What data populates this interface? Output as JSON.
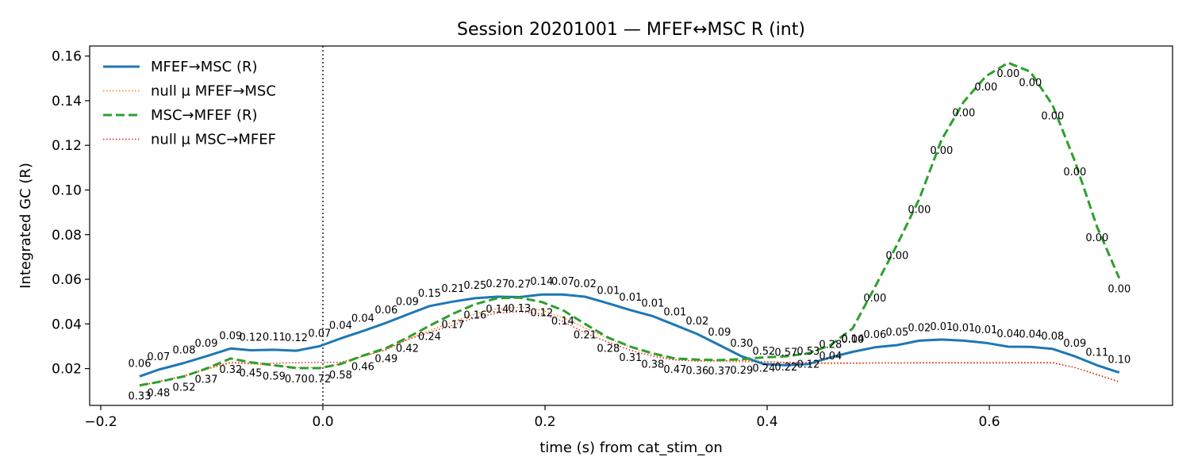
{
  "chart_data": {
    "type": "line",
    "title": "Session 20201001 — MFEF↔MSC R (int)",
    "xlabel": "time (s) from cat_stim_on",
    "ylabel": "Integrated GC (R)",
    "xlim": [
      -0.21,
      0.765
    ],
    "ylim": [
      0.0035,
      0.1645
    ],
    "xticks": [
      -0.2,
      0.0,
      0.2,
      0.4,
      0.6
    ],
    "xtick_labels": [
      "−0.2",
      "0.0",
      "0.2",
      "0.4",
      "0.6"
    ],
    "yticks": [
      0.02,
      0.04,
      0.06,
      0.08,
      0.1,
      0.12,
      0.14,
      0.16
    ],
    "ytick_labels": [
      "0.02",
      "0.04",
      "0.06",
      "0.08",
      "0.10",
      "0.12",
      "0.14",
      "0.16"
    ],
    "grid": false,
    "legend_position": "top-left",
    "event_line": {
      "x": 0.0,
      "style": "dotted",
      "color": "#000000"
    },
    "x": [
      -0.165,
      -0.148,
      -0.125,
      -0.105,
      -0.083,
      -0.065,
      -0.044,
      -0.024,
      -0.003,
      0.016,
      0.036,
      0.057,
      0.076,
      0.096,
      0.117,
      0.137,
      0.157,
      0.177,
      0.197,
      0.216,
      0.236,
      0.257,
      0.277,
      0.297,
      0.317,
      0.337,
      0.357,
      0.377,
      0.397,
      0.417,
      0.437,
      0.457,
      0.477,
      0.497,
      0.517,
      0.537,
      0.557,
      0.577,
      0.597,
      0.617,
      0.637,
      0.657,
      0.677,
      0.697,
      0.717
    ],
    "series": [
      {
        "name": "MFEF→MSC (R)",
        "color": "#1f77b4",
        "style": "solid",
        "values": [
          0.0165,
          0.0195,
          0.0225,
          0.0255,
          0.029,
          0.0282,
          0.0284,
          0.028,
          0.03,
          0.0335,
          0.0368,
          0.0405,
          0.0442,
          0.048,
          0.05,
          0.0515,
          0.0522,
          0.052,
          0.0532,
          0.0532,
          0.0522,
          0.0492,
          0.0462,
          0.0435,
          0.0395,
          0.0355,
          0.0305,
          0.0255,
          0.022,
          0.0215,
          0.022,
          0.025,
          0.0275,
          0.0295,
          0.0305,
          0.0325,
          0.033,
          0.0325,
          0.0315,
          0.0298,
          0.0297,
          0.0288,
          0.0255,
          0.0215,
          0.0182
        ],
        "labels": [
          "0.06",
          "0.07",
          "0.08",
          "0.09",
          "0.09",
          "0.12",
          "0.11",
          "0.12",
          "0.07",
          "0.04",
          "0.04",
          "0.06",
          "0.09",
          "0.15",
          "0.21",
          "0.25",
          "0.27",
          "0.27",
          "0.14",
          "0.07",
          "0.02",
          "0.01",
          "0.01",
          "0.01",
          "0.01",
          "0.02",
          "0.09",
          "0.30",
          "0.52",
          "0.57",
          "0.53",
          "0.28",
          "0.14",
          "0.06",
          "0.05",
          "0.02",
          "0.01",
          "0.01",
          "0.01",
          "0.04",
          "0.04",
          "0.08",
          "0.09",
          "0.11",
          "0.10"
        ]
      },
      {
        "name": "null µ MFEF→MSC",
        "color": "#ff7f0e",
        "style": "dotted-thin",
        "values": [
          0.012,
          0.014,
          0.0165,
          0.0195,
          0.0225,
          0.022,
          0.0215,
          0.0205,
          0.0205,
          0.022,
          0.0255,
          0.0285,
          0.033,
          0.037,
          0.041,
          0.0445,
          0.0468,
          0.0475,
          0.0462,
          0.0428,
          0.0382,
          0.0335,
          0.0295,
          0.0262,
          0.0242,
          0.0232,
          0.0232,
          0.023,
          0.0228,
          0.0225,
          0.0222,
          0.0222,
          0.0222,
          0.0225,
          0.0225,
          0.0228,
          0.0228,
          0.0228,
          0.0228,
          0.0228,
          0.0228,
          0.0228,
          0.0205,
          0.0175,
          0.0142
        ],
        "labels": []
      },
      {
        "name": "MSC→MFEF (R)",
        "color": "#2ca02c",
        "style": "dashed",
        "values": [
          0.0125,
          0.014,
          0.0165,
          0.02,
          0.0245,
          0.0228,
          0.0215,
          0.0202,
          0.0202,
          0.022,
          0.0258,
          0.0292,
          0.0338,
          0.0392,
          0.0445,
          0.0488,
          0.0515,
          0.0518,
          0.0498,
          0.0462,
          0.04,
          0.0338,
          0.0298,
          0.0268,
          0.0245,
          0.024,
          0.0238,
          0.0242,
          0.025,
          0.0255,
          0.0268,
          0.0305,
          0.038,
          0.0565,
          0.0755,
          0.096,
          0.1225,
          0.1395,
          0.151,
          0.157,
          0.153,
          0.138,
          0.113,
          0.0835,
          0.0605
        ],
        "labels": [
          "0.33",
          "0.48",
          "0.52",
          "0.37",
          "0.32",
          "0.45",
          "0.59",
          "0.70",
          "0.72",
          "0.58",
          "0.46",
          "0.49",
          "0.42",
          "0.24",
          "0.17",
          "0.16",
          "0.14",
          "0.13",
          "0.12",
          "0.14",
          "0.21",
          "0.28",
          "0.31",
          "0.38",
          "0.47",
          "0.36",
          "0.37",
          "0.29",
          "0.24",
          "0.22",
          "0.12",
          "0.04",
          "0.00",
          "0.00",
          "0.00",
          "0.00",
          "0.00",
          "0.00",
          "0.00",
          "0.00",
          "0.00",
          "0.00",
          "0.00",
          "0.00",
          "0.00"
        ]
      },
      {
        "name": "null µ MSC→MFEF",
        "color": "#d62728",
        "style": "dotted-thin",
        "values": [
          0.0122,
          0.0142,
          0.0168,
          0.02,
          0.0228,
          0.0224,
          0.0224,
          0.0226,
          0.0228,
          0.0228,
          0.0255,
          0.0285,
          0.033,
          0.0362,
          0.0395,
          0.0428,
          0.0448,
          0.0455,
          0.0445,
          0.0412,
          0.036,
          0.0318,
          0.0282,
          0.0255,
          0.0238,
          0.0235,
          0.0235,
          0.0235,
          0.0232,
          0.0228,
          0.0228,
          0.0225,
          0.0225,
          0.0225,
          0.0225,
          0.0225,
          0.0225,
          0.0225,
          0.0225,
          0.0225,
          0.0225,
          0.0225,
          0.0205,
          0.0172,
          0.014
        ],
        "labels": []
      }
    ]
  }
}
